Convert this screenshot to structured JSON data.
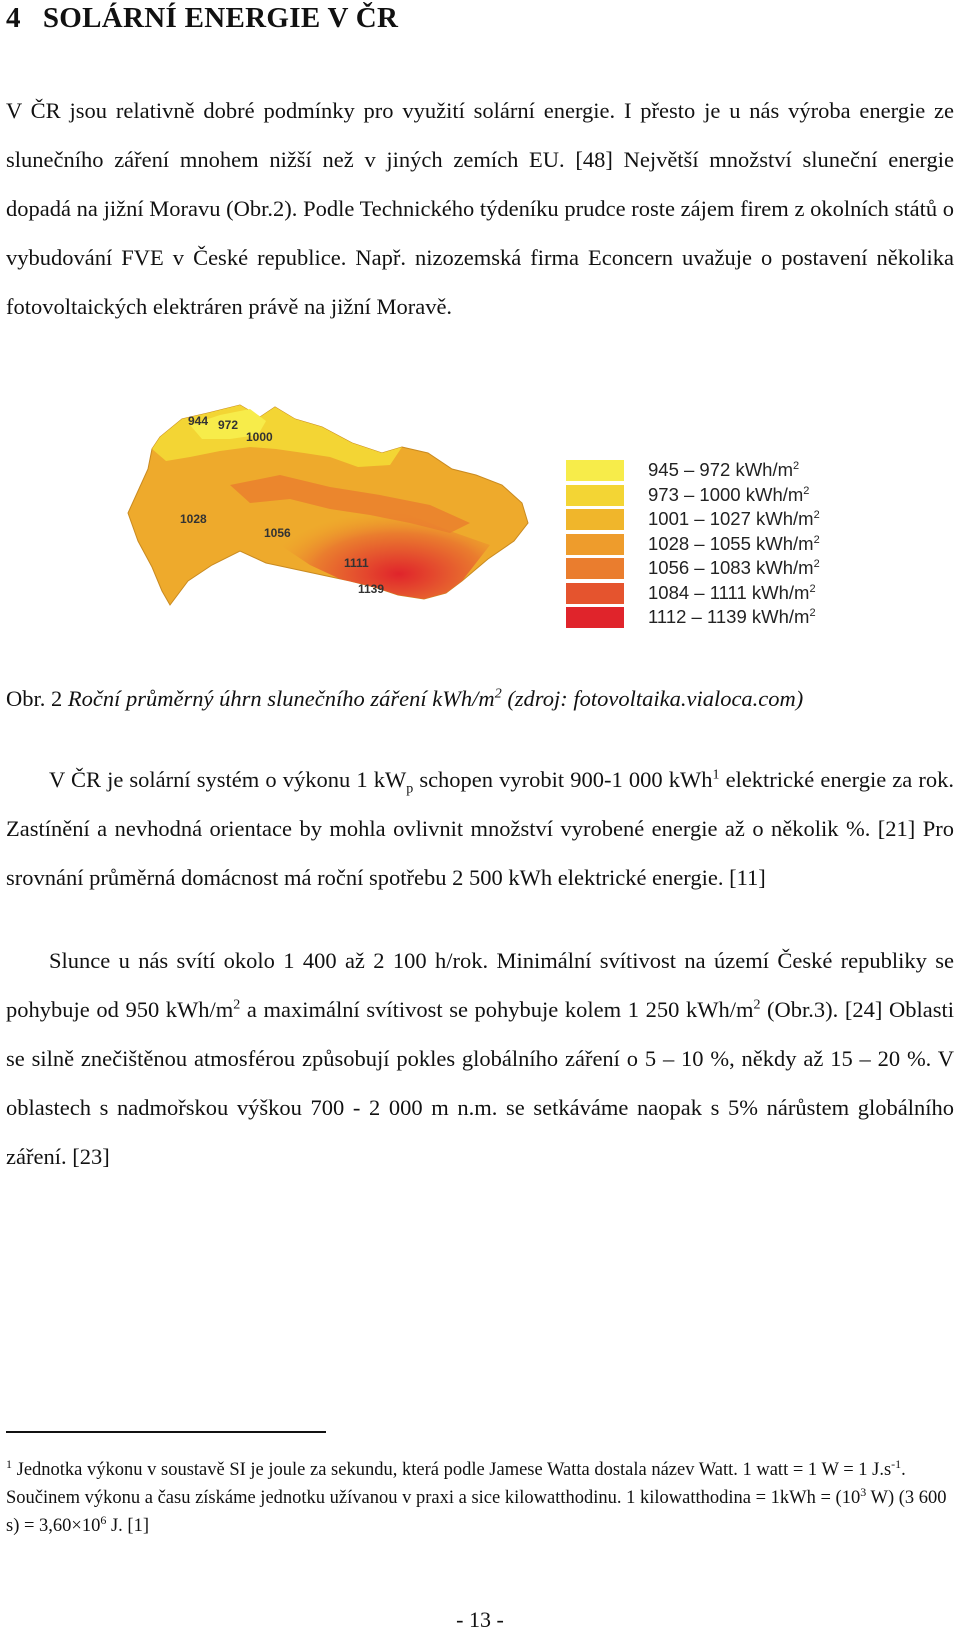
{
  "heading": {
    "number": "4",
    "title": "SOLÁRNÍ ENERGIE V ČR"
  },
  "paragraph1": "V ČR jsou relativně dobré podmínky pro využití solární energie. I přesto je u nás výroba energie ze slunečního záření mnohem nižší než v jiných zemích EU. [48] Největší množství sluneční energie dopadá na jižní Moravu (Obr.2). Podle Technického týdeníku prudce roste zájem firem z okolních států o vybudování FVE v České republice. Např. nizozemská firma Econcern uvažuje o postavení několika fotovoltaických elektráren právě na jižní Moravě.",
  "figure": {
    "map_labels": [
      "944",
      "972",
      "1000",
      "1028",
      "1056",
      "1111",
      "1139"
    ],
    "legend": [
      {
        "label": "945 – 972 kWh/m",
        "sup": "2",
        "color": "#f7ec4a"
      },
      {
        "label": "973 – 1000 kWh/m",
        "sup": "2",
        "color": "#f3d534"
      },
      {
        "label": "1001 – 1027 kWh/m",
        "sup": "2",
        "color": "#f0b62b"
      },
      {
        "label": "1028 – 1055 kWh/m",
        "sup": "2",
        "color": "#ee9c2c"
      },
      {
        "label": "1056 – 1083 kWh/m",
        "sup": "2",
        "color": "#ea7d2e"
      },
      {
        "label": "1084 – 1111 kWh/m",
        "sup": "2",
        "color": "#e5542e"
      },
      {
        "label": "1112 – 1139 kWh/m",
        "sup": "2",
        "color": "#e0242b"
      }
    ]
  },
  "caption": {
    "prefix": "Obr. 2",
    "italic_a": "Roční průměrný úhrn slunečního záření kWh/m",
    "sup": "2",
    "italic_b": " (zdroj: fotovoltaika.vialoca.com)"
  },
  "paragraph2": {
    "a": "V ČR je solární systém o výkonu 1 kW",
    "sub": "p",
    "b": " schopen vyrobit 900-1 000 kWh",
    "sup": "1",
    "c": " elektrické energie za rok. Zastínění a nevhodná orientace by mohla ovlivnit množství vyrobené energie až o několik %. [21] Pro srovnání průměrná domácnost má roční spotřebu 2 500 kWh elektrické energie. [11]"
  },
  "paragraph3": {
    "a": "Slunce u nás svítí okolo 1 400 až 2 100 h/rok. Minimální svítivost na území České republiky se pohybuje od 950 kWh/m",
    "sup1": "2",
    "b": " a maximální svítivost se pohybuje kolem 1 250 kWh/m",
    "sup2": "2",
    "c": " (Obr.3). [24] Oblasti se silně znečištěnou atmosférou způsobují pokles globálního záření o 5 – 10 %, někdy až 15 – 20 %. V oblastech s nadmořskou výškou 700 - 2 000 m n.m. se setkáváme naopak s 5% nárůstem globálního záření. [23]"
  },
  "footnote": {
    "marker": "1",
    "a": " Jednotka výkonu v soustavě SI je joule za sekundu, která podle Jamese Watta dostala název Watt. 1 watt = 1 W = 1 J.s",
    "sup1": "-1",
    "b": ". Součinem výkonu a času získáme jednotku užívanou v praxi a sice kilowatthodinu. 1 kilowatthodina = 1kWh = (10",
    "sup2": "3",
    "c": " W) (3 600 s) = 3,60×10",
    "sup3": "6",
    "d": " J. [1]"
  },
  "page_number": "- 13 -"
}
